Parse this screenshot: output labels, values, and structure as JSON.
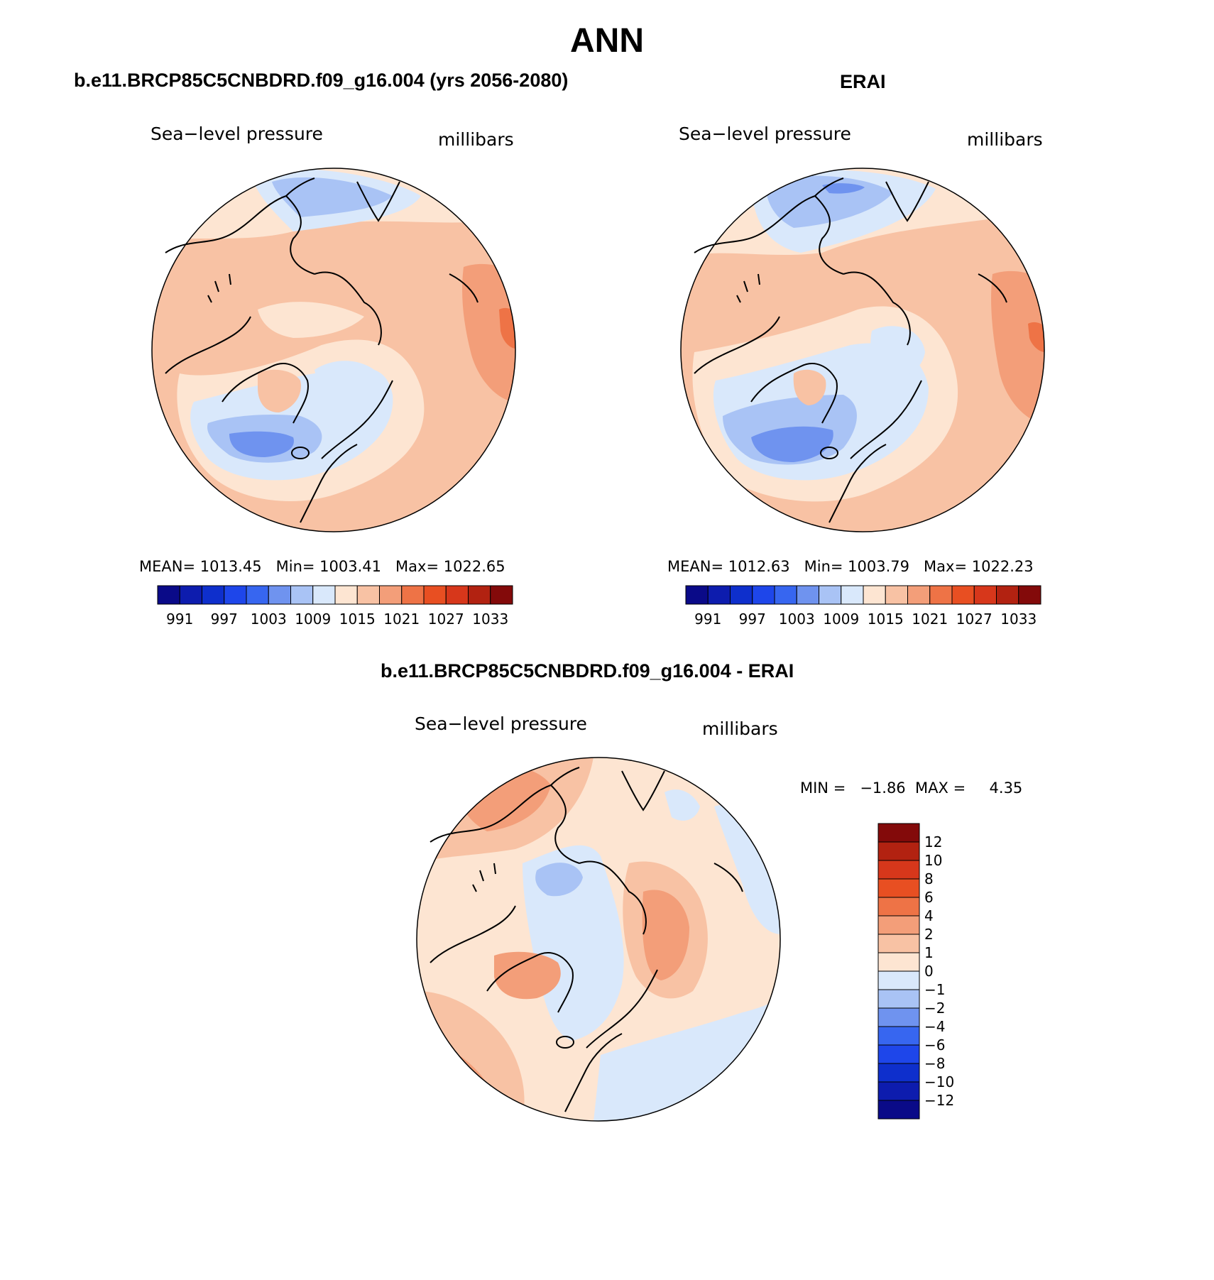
{
  "title": "ANN",
  "panels": [
    {
      "id": "model",
      "title": "b.e11.BRCP85C5CNBDRD.f09_g16.004 (yrs 2056-2080)",
      "left_label": "Sea−level pressure",
      "right_label": "millibars",
      "stats": {
        "mean_label": "MEAN=",
        "mean": "1013.45",
        "min_label": "Min=",
        "min": "1003.41",
        "max_label": "Max=",
        "max": "1022.65"
      }
    },
    {
      "id": "obs",
      "title": "ERAI",
      "left_label": "Sea−level pressure",
      "right_label": "millibars",
      "stats": {
        "mean_label": "MEAN=",
        "mean": "1012.63",
        "min_label": "Min=",
        "min": "1003.79",
        "max_label": "Max=",
        "max": "1022.23"
      }
    }
  ],
  "abs_colorbar": {
    "colors": [
      "#0a0a88",
      "#0d1cae",
      "#0e2fcc",
      "#1e46ea",
      "#3766f0",
      "#6f93ef",
      "#a9c3f5",
      "#d9e8fb",
      "#fde5d2",
      "#f8c2a4",
      "#f39e79",
      "#ee7346",
      "#e84f22",
      "#d7371b",
      "#b22211",
      "#830a0a"
    ],
    "ticks": [
      "991",
      "997",
      "1003",
      "1009",
      "1015",
      "1021",
      "1027",
      "1033"
    ]
  },
  "diff_panel": {
    "title": "b.e11.BRCP85C5CNBDRD.f09_g16.004 - ERAI",
    "left_label": "Sea−level pressure",
    "right_label": "millibars",
    "minmax": "MIN =   −1.86  MAX =     4.35"
  },
  "diff_colorbar": {
    "colors": [
      "#830a0a",
      "#b22211",
      "#d7371b",
      "#e84f22",
      "#ee7346",
      "#f39e79",
      "#f8c2a4",
      "#fde5d2",
      "#d9e8fb",
      "#a9c3f5",
      "#6f93ef",
      "#3766f0",
      "#1e46ea",
      "#0e2fcc",
      "#0d1cae",
      "#0a0a88"
    ],
    "ticks": [
      "12",
      "10",
      "8",
      "6",
      "4",
      "2",
      "1",
      "0",
      "−1",
      "−2",
      "−4",
      "−6",
      "−8",
      "−10",
      "−12"
    ]
  }
}
